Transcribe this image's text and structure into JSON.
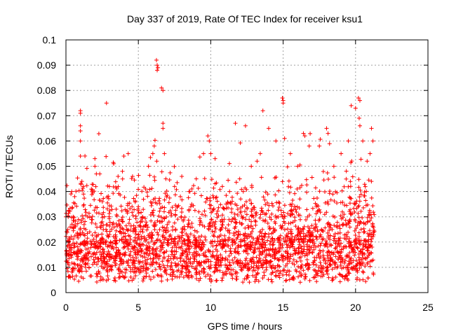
{
  "chart_data": {
    "type": "scatter",
    "title": "Day 337 of 2019, Rate Of TEC Index for receiver ksu1",
    "xlabel": "GPS time / hours",
    "ylabel": "ROTI / TECUs",
    "xlim": [
      0,
      25
    ],
    "ylim": [
      0,
      0.1
    ],
    "grid": true,
    "marker": "+",
    "color": "#ff0000",
    "x_ticks": [
      "0",
      "5",
      "10",
      "15",
      "20",
      "25"
    ],
    "y_ticks": [
      "0",
      "0.01",
      "0.02",
      "0.03",
      "0.04",
      "0.05",
      "0.06",
      "0.07",
      "0.08",
      "0.09",
      "0.1"
    ],
    "x_tick_values": [
      0,
      5,
      10,
      15,
      20,
      25
    ],
    "y_tick_values": [
      0,
      0.01,
      0.02,
      0.03,
      0.04,
      0.05,
      0.06,
      0.07,
      0.08,
      0.09,
      0.1
    ],
    "series": [
      {
        "values": [
          [
            0.0,
            0.03
          ],
          [
            0.1,
            0.012
          ],
          [
            0.2,
            0.02
          ],
          [
            0.4,
            0.04
          ],
          [
            0.5,
            0.03
          ],
          [
            0.6,
            0.038
          ],
          [
            1.0,
            0.072
          ],
          [
            1.0,
            0.071
          ],
          [
            1.0,
            0.066
          ],
          [
            1.0,
            0.064
          ],
          [
            1.0,
            0.06
          ],
          [
            1.0,
            0.054
          ],
          [
            1.1,
            0.044
          ],
          [
            1.2,
            0.042
          ],
          [
            1.5,
            0.03
          ],
          [
            1.8,
            0.04
          ],
          [
            2.0,
            0.053
          ],
          [
            2.0,
            0.05
          ],
          [
            2.1,
            0.047
          ],
          [
            2.5,
            0.028
          ],
          [
            2.8,
            0.075
          ],
          [
            3.0,
            0.042
          ],
          [
            3.3,
            0.051
          ],
          [
            3.6,
            0.046
          ],
          [
            3.9,
            0.048
          ],
          [
            4.0,
            0.054
          ],
          [
            4.3,
            0.055
          ],
          [
            4.6,
            0.046
          ],
          [
            5.0,
            0.034
          ],
          [
            5.3,
            0.03
          ],
          [
            5.7,
            0.05
          ],
          [
            6.0,
            0.055
          ],
          [
            6.1,
            0.058
          ],
          [
            6.25,
            0.092
          ],
          [
            6.3,
            0.09
          ],
          [
            6.35,
            0.089
          ],
          [
            6.3,
            0.088
          ],
          [
            6.6,
            0.081
          ],
          [
            6.7,
            0.08
          ],
          [
            6.7,
            0.067
          ],
          [
            6.7,
            0.065
          ],
          [
            6.8,
            0.055
          ],
          [
            6.9,
            0.045
          ],
          [
            7.5,
            0.042
          ],
          [
            8.0,
            0.046
          ],
          [
            8.5,
            0.04
          ],
          [
            9.0,
            0.045
          ],
          [
            9.5,
            0.055
          ],
          [
            9.8,
            0.062
          ],
          [
            9.9,
            0.06
          ],
          [
            10.0,
            0.055
          ],
          [
            10.3,
            0.053
          ],
          [
            10.8,
            0.042
          ],
          [
            11.3,
            0.04
          ],
          [
            11.7,
            0.067
          ],
          [
            12.0,
            0.045
          ],
          [
            12.4,
            0.066
          ],
          [
            12.8,
            0.05
          ],
          [
            13.2,
            0.052
          ],
          [
            13.6,
            0.072
          ],
          [
            14.0,
            0.065
          ],
          [
            14.5,
            0.06
          ],
          [
            14.95,
            0.077
          ],
          [
            15.0,
            0.076
          ],
          [
            15.0,
            0.075
          ],
          [
            15.1,
            0.061
          ],
          [
            15.5,
            0.055
          ],
          [
            16.0,
            0.05
          ],
          [
            16.4,
            0.063
          ],
          [
            16.5,
            0.062
          ],
          [
            16.8,
            0.058
          ],
          [
            17.5,
            0.058
          ],
          [
            18.0,
            0.065
          ],
          [
            18.1,
            0.063
          ],
          [
            18.5,
            0.05
          ],
          [
            19.0,
            0.055
          ],
          [
            19.5,
            0.06
          ],
          [
            19.7,
            0.074
          ],
          [
            20.0,
            0.073
          ],
          [
            20.2,
            0.077
          ],
          [
            20.3,
            0.076
          ],
          [
            20.25,
            0.069
          ],
          [
            20.3,
            0.066
          ],
          [
            20.5,
            0.06
          ],
          [
            20.8,
            0.052
          ],
          [
            21.0,
            0.055
          ],
          [
            21.1,
            0.065
          ],
          [
            21.2,
            0.06
          ]
        ]
      }
    ]
  }
}
